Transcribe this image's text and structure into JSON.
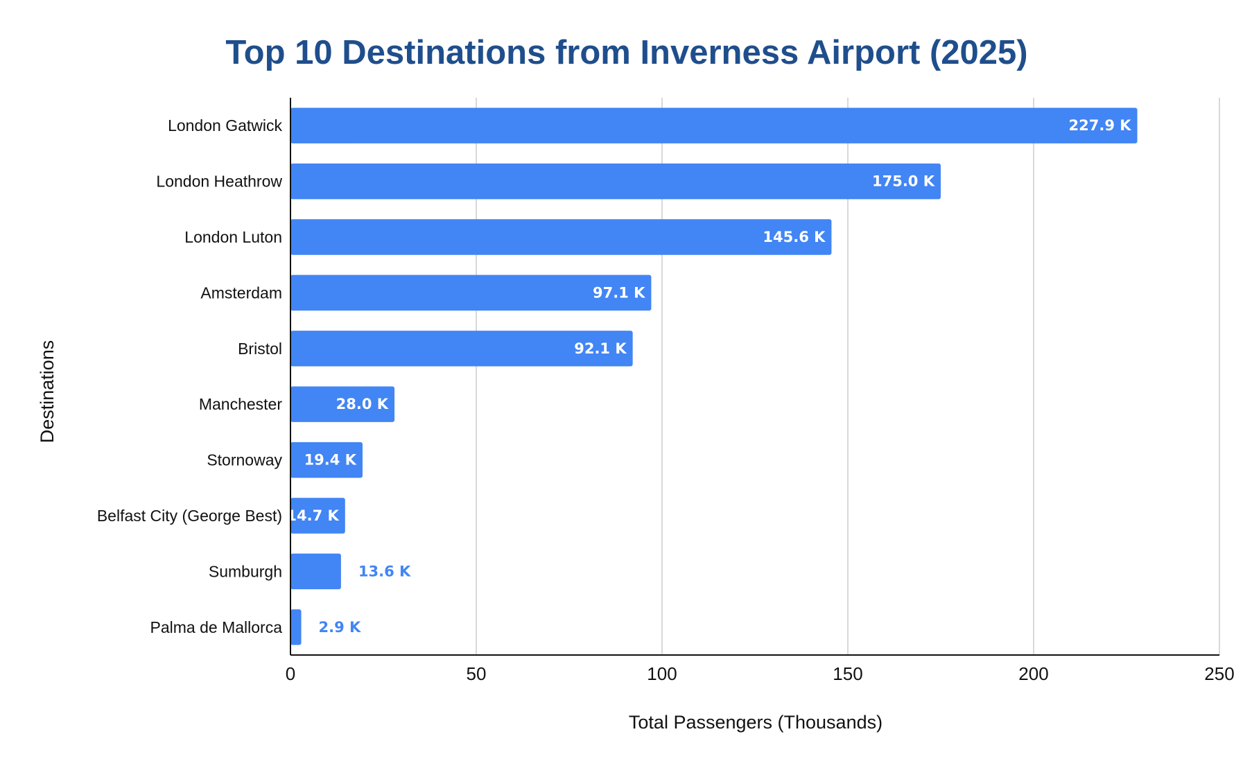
{
  "chart_data": {
    "type": "bar",
    "orientation": "horizontal",
    "title": "Top 10 Destinations from Inverness Airport (2025)",
    "xlabel": "Total Passengers (Thousands)",
    "ylabel": "Destinations",
    "xlim": [
      0,
      250
    ],
    "x_ticks": [
      "0",
      "50",
      "100",
      "150",
      "200",
      "250"
    ],
    "grid": true,
    "legend": "none",
    "bar_color": "#4285f4",
    "label_inside_color": "#ffffff",
    "label_outside_color": "#4285f4",
    "title_color": "#1f4e8c",
    "categories": [
      "London Gatwick",
      "London Heathrow",
      "London Luton",
      "Amsterdam",
      "Bristol",
      "Manchester",
      "Stornoway",
      "Belfast City (George Best)",
      "Sumburgh",
      "Palma de Mallorca"
    ],
    "values": [
      227.9,
      175.0,
      145.6,
      97.1,
      92.1,
      28.0,
      19.4,
      14.7,
      13.6,
      2.9
    ],
    "data_labels": [
      "227.9 K",
      "175.0 K",
      "145.6 K",
      "97.1 K",
      "92.1 K",
      "28.0 K",
      "19.4 K",
      "14.7 K",
      "13.6 K",
      "2.9 K"
    ],
    "label_positions": [
      "inside",
      "inside",
      "inside",
      "inside",
      "inside",
      "inside",
      "inside",
      "inside",
      "outside",
      "outside"
    ]
  }
}
